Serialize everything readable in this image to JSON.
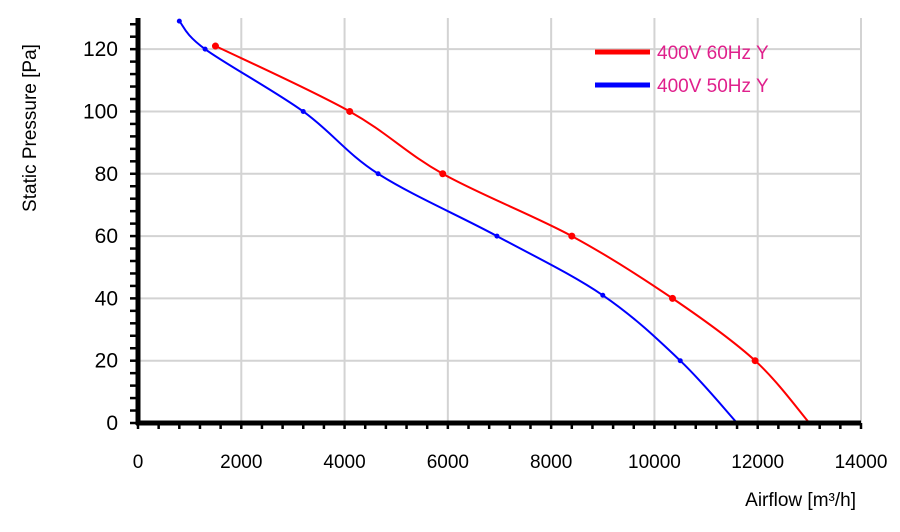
{
  "chart_data": {
    "type": "line",
    "title": "",
    "xlabel": "Airflow [m³/h]",
    "ylabel": "Static Pressure [Pa]",
    "xlim": [
      0,
      14000
    ],
    "ylim": [
      0,
      130
    ],
    "x_ticks": [
      0,
      2000,
      4000,
      6000,
      8000,
      10000,
      12000,
      14000
    ],
    "y_ticks": [
      0,
      20,
      40,
      60,
      80,
      100,
      120
    ],
    "grid": true,
    "legend_position": "top-right",
    "legend_text_color": "#e0208c",
    "series": [
      {
        "name": "400V 60Hz Y",
        "color": "#ff0000",
        "points": [
          [
            1500,
            121
          ],
          [
            4100,
            100
          ],
          [
            5900,
            80
          ],
          [
            8400,
            60
          ],
          [
            10350,
            40
          ],
          [
            11950,
            20
          ],
          [
            13000,
            0
          ]
        ]
      },
      {
        "name": "400V 50Hz Y",
        "color": "#0000ff",
        "points": [
          [
            800,
            129
          ],
          [
            1300,
            120
          ],
          [
            3200,
            100
          ],
          [
            4650,
            80
          ],
          [
            6950,
            60
          ],
          [
            9000,
            41
          ],
          [
            10500,
            20
          ],
          [
            11600,
            0
          ]
        ]
      }
    ]
  }
}
